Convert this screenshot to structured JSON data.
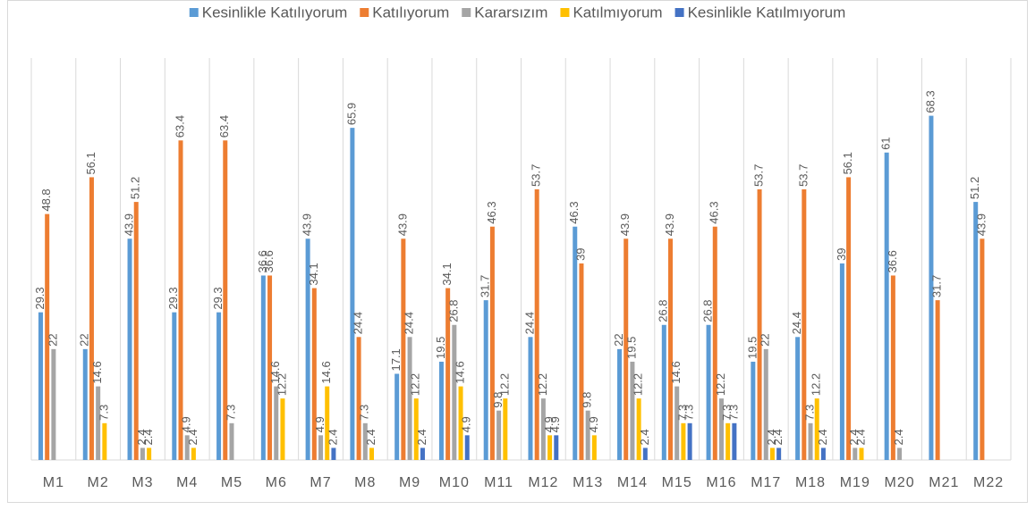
{
  "chart_data": {
    "type": "bar",
    "categories": [
      "M1",
      "M2",
      "M3",
      "M4",
      "M5",
      "M6",
      "M7",
      "M8",
      "M9",
      "M10",
      "M11",
      "M12",
      "M13",
      "M14",
      "M15",
      "M16",
      "M17",
      "M18",
      "M19",
      "M20",
      "M21",
      "M22"
    ],
    "series": [
      {
        "name": "Kesinlikle Katılıyorum",
        "color": "#5b9bd5",
        "values": [
          29.3,
          22,
          43.9,
          29.3,
          29.3,
          36.6,
          43.9,
          65.9,
          17.1,
          19.5,
          31.7,
          24.4,
          46.3,
          22,
          26.8,
          26.8,
          19.5,
          24.4,
          39,
          61,
          68.3,
          51.2
        ]
      },
      {
        "name": "Katılıyorum",
        "color": "#ed7d31",
        "values": [
          48.8,
          56.1,
          51.2,
          63.4,
          63.4,
          36.6,
          34.1,
          24.4,
          43.9,
          34.1,
          46.3,
          53.7,
          39,
          43.9,
          43.9,
          46.3,
          53.7,
          53.7,
          56.1,
          36.6,
          31.7,
          43.9
        ]
      },
      {
        "name": "Kararsızım",
        "color": "#a5a5a5",
        "values": [
          22,
          14.6,
          2.4,
          4.9,
          7.3,
          14.6,
          4.9,
          7.3,
          24.4,
          26.8,
          9.8,
          12.2,
          9.8,
          19.5,
          14.6,
          12.2,
          22,
          7.3,
          2.4,
          2.4,
          null,
          null
        ]
      },
      {
        "name": "Katılmıyorum",
        "color": "#ffc000",
        "values": [
          null,
          7.3,
          2.4,
          2.4,
          null,
          12.2,
          14.6,
          2.4,
          12.2,
          14.6,
          12.2,
          4.9,
          4.9,
          12.2,
          7.3,
          7.3,
          2.4,
          12.2,
          2.4,
          null,
          null,
          null
        ]
      },
      {
        "name": "Kesinlikle Katılmıyorum",
        "color": "#4472c4",
        "values": [
          null,
          null,
          null,
          null,
          null,
          null,
          2.4,
          null,
          2.4,
          4.9,
          null,
          4.9,
          null,
          2.4,
          7.3,
          7.3,
          2.4,
          2.4,
          null,
          null,
          null,
          null
        ]
      }
    ],
    "ylim": [
      0,
      70
    ],
    "legend": "top"
  }
}
